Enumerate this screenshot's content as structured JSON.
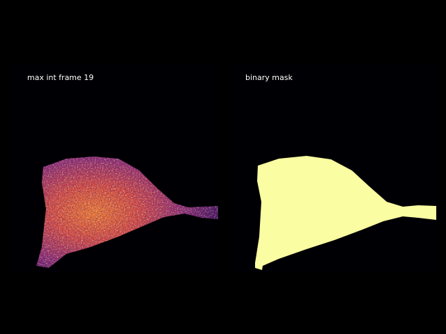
{
  "panels": [
    {
      "title": "max int frame 19"
    },
    {
      "title": "binary mask"
    }
  ]
}
